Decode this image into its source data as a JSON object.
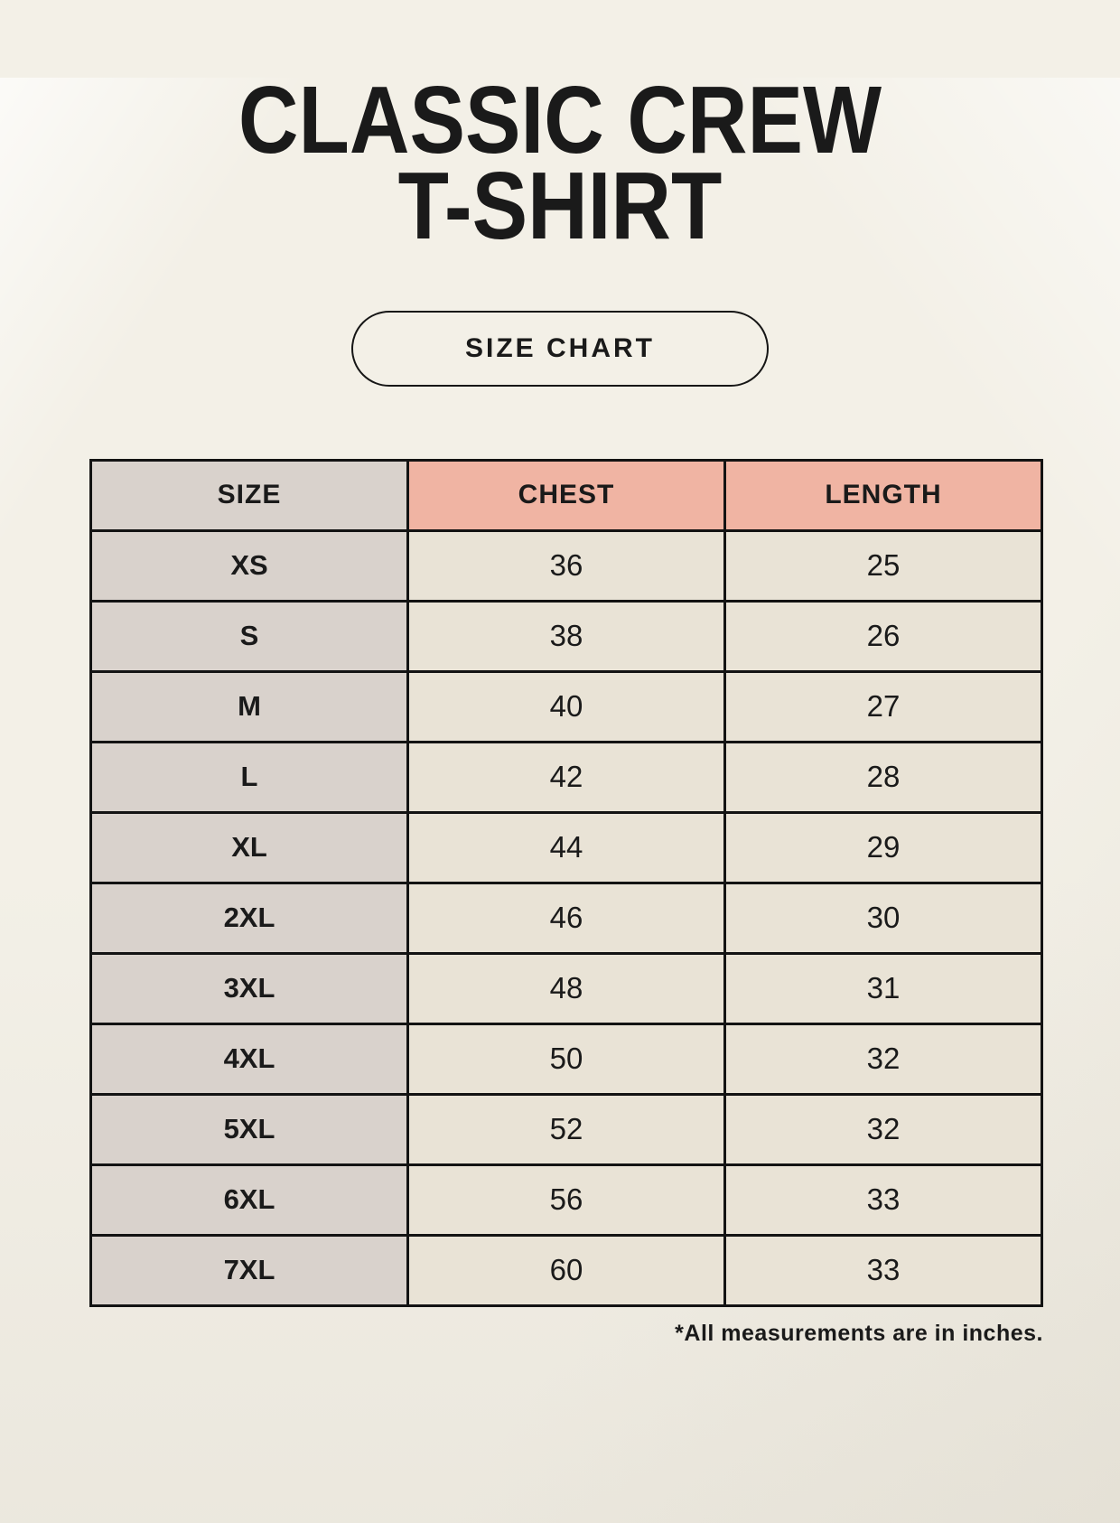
{
  "header": {
    "title_line1": "CLASSIC CREW",
    "title_line2": "T-SHIRT",
    "badge_label": "SIZE CHART"
  },
  "table": {
    "columns": [
      "SIZE",
      "CHEST",
      "LENGTH"
    ],
    "rows": [
      {
        "size": "XS",
        "chest": "36",
        "length": "25"
      },
      {
        "size": "S",
        "chest": "38",
        "length": "26"
      },
      {
        "size": "M",
        "chest": "40",
        "length": "27"
      },
      {
        "size": "L",
        "chest": "42",
        "length": "28"
      },
      {
        "size": "XL",
        "chest": "44",
        "length": "29"
      },
      {
        "size": "2XL",
        "chest": "46",
        "length": "30"
      },
      {
        "size": "3XL",
        "chest": "48",
        "length": "31"
      },
      {
        "size": "4XL",
        "chest": "50",
        "length": "32"
      },
      {
        "size": "5XL",
        "chest": "52",
        "length": "32"
      },
      {
        "size": "6XL",
        "chest": "56",
        "length": "33"
      },
      {
        "size": "7XL",
        "chest": "60",
        "length": "33"
      }
    ]
  },
  "footnote": "*All measurements are in inches.",
  "units": "inches",
  "colors": {
    "background": "#f3f0e7",
    "header_accent": "#f0b4a3",
    "size_column": "#d9d2cc",
    "data_cell": "#e9e3d6",
    "border": "#131313",
    "text": "#1a1a1a"
  }
}
